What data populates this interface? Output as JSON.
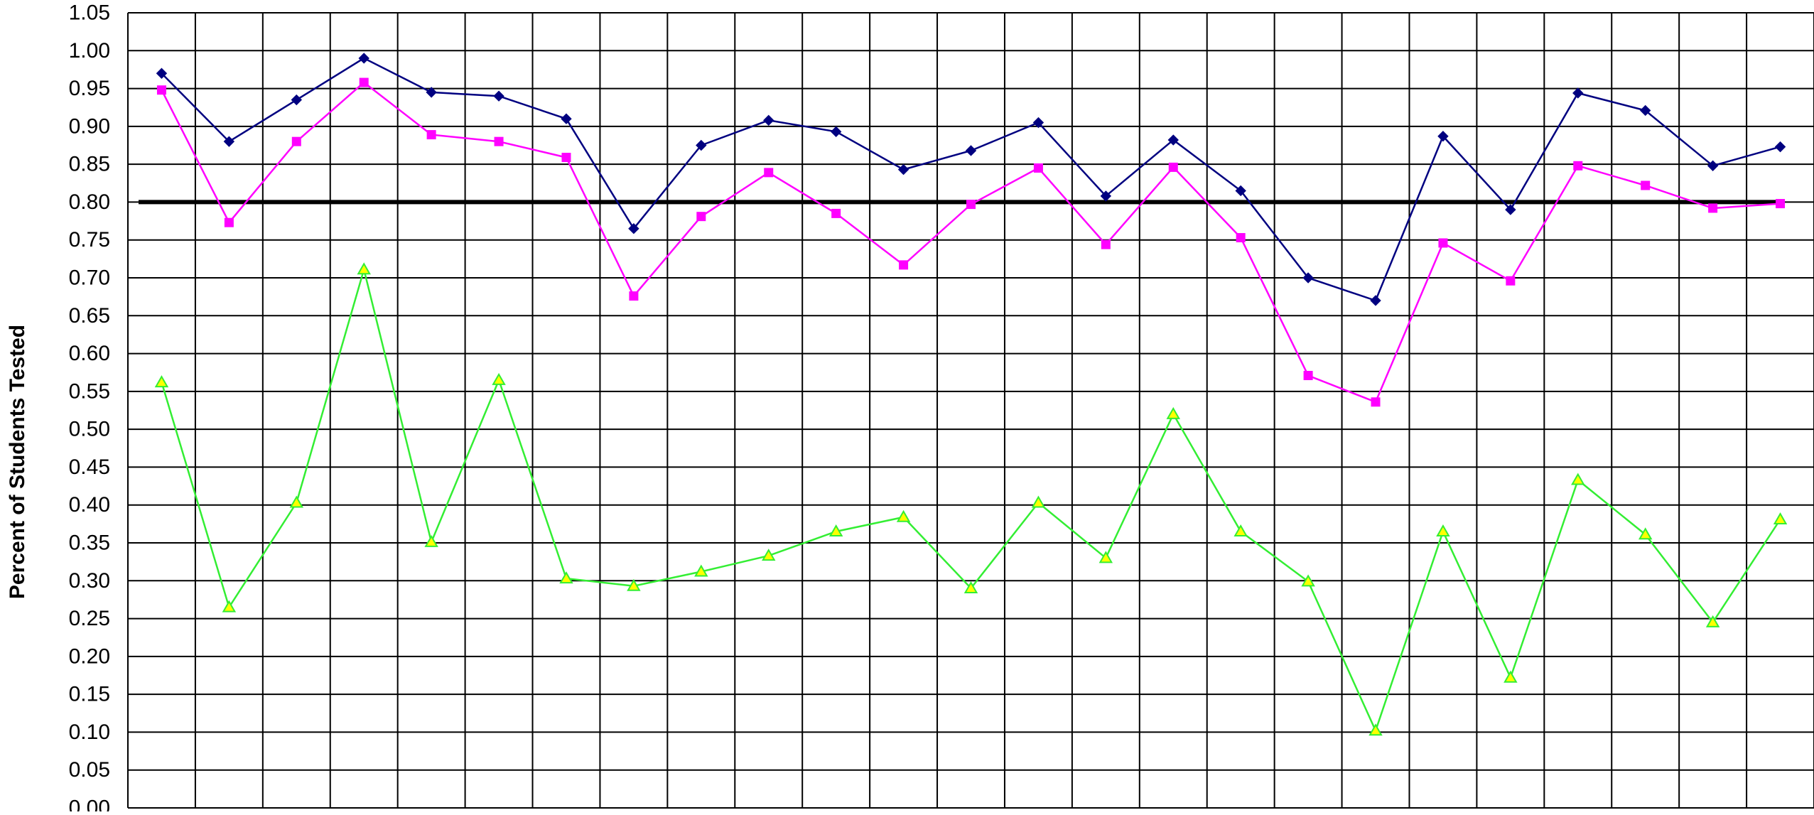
{
  "chart_data": {
    "type": "line",
    "title": "",
    "xlabel": "",
    "ylabel": "Percent of Students Tested",
    "ylim": [
      0,
      1.05
    ],
    "ytick_step": 0.05,
    "y_ticks": [
      "0.00",
      "0.05",
      "0.10",
      "0.15",
      "0.20",
      "0.25",
      "0.30",
      "0.35",
      "0.40",
      "0.45",
      "0.50",
      "0.55",
      "0.60",
      "0.65",
      "0.70",
      "0.75",
      "0.80",
      "0.85",
      "0.90",
      "0.95",
      "1.00",
      "1.05"
    ],
    "grid": true,
    "legend": "none",
    "reference_line": {
      "value": 0.8,
      "color": "#000000"
    },
    "x": [
      1,
      2,
      3,
      4,
      5,
      6,
      7,
      8,
      9,
      10,
      11,
      12,
      13,
      14,
      15,
      16,
      17,
      18,
      19,
      20,
      21,
      22,
      23,
      24,
      25
    ],
    "series": [
      {
        "color": "#000080",
        "marker": "diamond",
        "values": [
          0.97,
          0.88,
          0.935,
          0.99,
          0.945,
          0.94,
          0.91,
          0.765,
          0.875,
          0.908,
          0.893,
          0.843,
          0.868,
          0.905,
          0.808,
          0.882,
          0.815,
          0.7,
          0.67,
          0.887,
          0.79,
          0.944,
          0.921,
          0.848,
          0.873
        ]
      },
      {
        "color": "#FF00FF",
        "marker": "square",
        "values": [
          0.948,
          0.773,
          0.88,
          0.958,
          0.889,
          0.88,
          0.859,
          0.676,
          0.781,
          0.839,
          0.785,
          0.717,
          0.797,
          0.845,
          0.744,
          0.846,
          0.753,
          0.571,
          0.536,
          0.746,
          0.696,
          0.848,
          0.822,
          0.792,
          0.798
        ]
      },
      {
        "color": "#33EE33",
        "marker_fill": "#FFFF00",
        "marker": "triangle",
        "values": [
          0.562,
          0.265,
          0.403,
          0.711,
          0.351,
          0.565,
          0.303,
          0.293,
          0.312,
          0.333,
          0.365,
          0.384,
          0.29,
          0.403,
          0.33,
          0.52,
          0.365,
          0.299,
          0.102,
          0.365,
          0.172,
          0.433,
          0.361,
          0.245,
          0.381
        ]
      }
    ]
  }
}
